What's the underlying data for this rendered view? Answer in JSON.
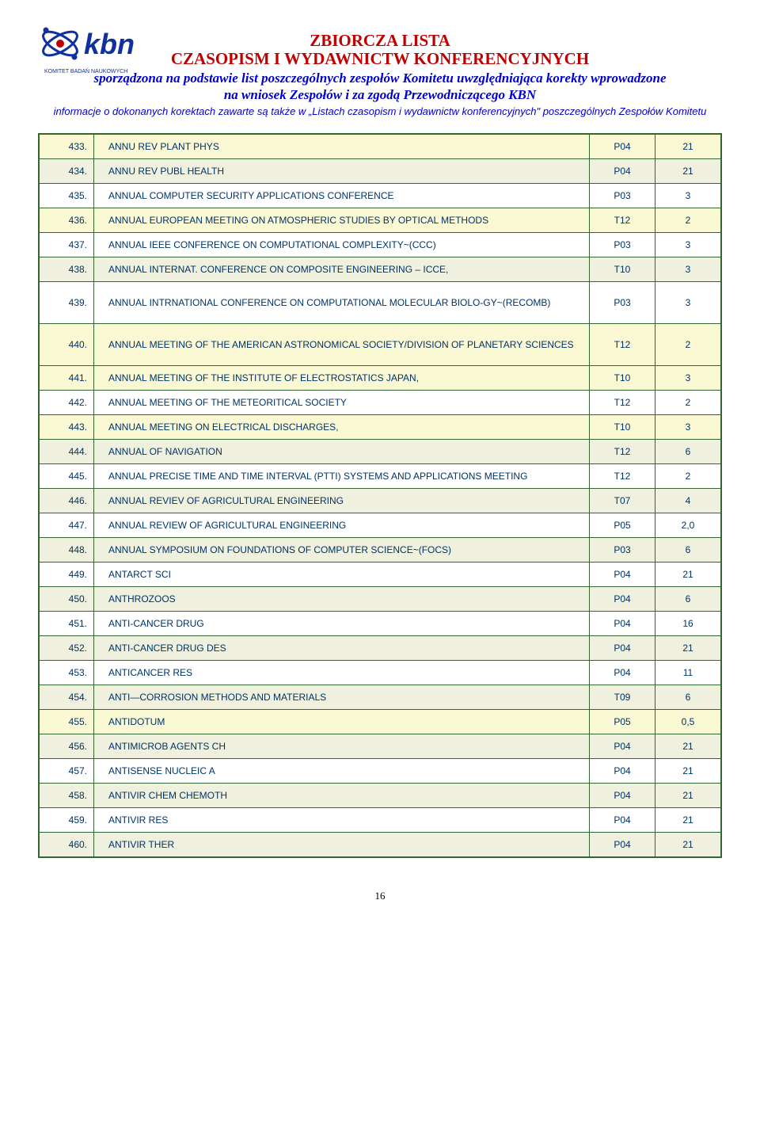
{
  "header": {
    "title_line1": "ZBIORCZA LISTA",
    "title_line2": "CZASOPISM I WYDAWNICTW KONFERENCYJNYCH",
    "subtitle_line1": "sporządzona na podstawie list poszczególnych zespołów Komitetu uwzględniająca korekty wprowadzone",
    "subtitle_line2": "na wniosek Zespołów i za zgodą Przewodniczącego KBN",
    "note": "informacje o dokonanych korektach zawarte są także w „Listach czasopism i wydawnictw konferencyjnych\" poszczególnych Zespołów Komitetu",
    "logo_text_top": "kbn",
    "logo_text_bottom": "KOMITET BADAŃ NAUKOWYCH"
  },
  "colors": {
    "border": "#336633",
    "text": "#003366",
    "title": "#c00000",
    "subtitle": "#0000cc",
    "bg_cream": "#fbf8d4",
    "bg_olive": "#eff0dd",
    "bg_white": "#ffffff"
  },
  "rows": [
    {
      "num": "433.",
      "name": "ANNU REV PLANT PHYS",
      "code": "P04",
      "val": "21",
      "bg": "cream"
    },
    {
      "num": "434.",
      "name": "ANNU REV PUBL HEALTH",
      "code": "P04",
      "val": "21",
      "bg": "olive"
    },
    {
      "num": "435.",
      "name": "ANNUAL COMPUTER SECURITY APPLICATIONS CONFERENCE",
      "code": "P03",
      "val": "3",
      "bg": "white"
    },
    {
      "num": "436.",
      "name": "ANNUAL EUROPEAN MEETING ON ATMOSPHERIC  STUDIES BY OPTICAL METHODS",
      "code": "T12",
      "val": "2",
      "bg": "cream"
    },
    {
      "num": "437.",
      "name": "ANNUAL IEEE CONFERENCE ON COMPUTATIONAL COMPLEXITY~(CCC)",
      "code": "P03",
      "val": "3",
      "bg": "white"
    },
    {
      "num": "438.",
      "name": " ANNUAL INTERNAT. CONFERENCE ON COMPOSITE ENGINEERING – ICCE,",
      "code": "T10",
      "val": "3",
      "bg": "olive"
    },
    {
      "num": "439.",
      "name": "ANNUAL INTRNATIONAL  CONFERENCE ON COMPUTATIONAL MOLECULAR BIOLO-GY~(RECOMB)",
      "code": "P03",
      "val": "3",
      "bg": "white",
      "tall": true
    },
    {
      "num": "440.",
      "name": "ANNUAL MEETING OF THE AMERICAN ASTRONOMICAL SOCIETY/DIVISION OF PLANETARY SCIENCES",
      "code": "T12",
      "val": "2",
      "bg": "cream",
      "tall": true
    },
    {
      "num": "441.",
      "name": "ANNUAL MEETING OF THE INSTITUTE OF ELECTROSTATICS JAPAN,",
      "code": "T10",
      "val": "3",
      "bg": "cream"
    },
    {
      "num": "442.",
      "name": "ANNUAL MEETING OF THE METEORITICAL SOCIETY",
      "code": "T12",
      "val": "2",
      "bg": "white"
    },
    {
      "num": "443.",
      "name": "ANNUAL MEETING ON ELECTRICAL DISCHARGES,",
      "code": "T10",
      "val": "3",
      "bg": "cream"
    },
    {
      "num": "444.",
      "name": "ANNUAL OF NAVIGATION",
      "code": "T12",
      "val": "6",
      "bg": "olive"
    },
    {
      "num": "445.",
      "name": "ANNUAL PRECISE TIME AND TIME INTERVAL (PTTI) SYSTEMS AND APPLICATIONS MEETING",
      "code": "T12",
      "val": "2",
      "bg": "white"
    },
    {
      "num": "446.",
      "name": "ANNUAL REVIEV OF AGRICULTURAL ENGINEERING",
      "code": "T07",
      "val": "4",
      "bg": "olive"
    },
    {
      "num": "447.",
      "name": "ANNUAL REVIEW OF AGRICULTURAL ENGINEERING",
      "code": "P05",
      "val": "2,0",
      "bg": "white"
    },
    {
      "num": "448.",
      "name": "ANNUAL SYMPOSIUM ON FOUNDATIONS OF COMPUTER SCIENCE~(FOCS)",
      "code": "P03",
      "val": "6",
      "bg": "olive"
    },
    {
      "num": "449.",
      "name": "ANTARCT SCI",
      "code": "P04",
      "val": "21",
      "bg": "white"
    },
    {
      "num": "450.",
      "name": "ANTHROZOOS",
      "code": "P04",
      "val": "6",
      "bg": "olive"
    },
    {
      "num": "451.",
      "name": "ANTI-CANCER DRUG",
      "code": "P04",
      "val": "16",
      "bg": "white"
    },
    {
      "num": "452.",
      "name": "ANTI-CANCER DRUG DES",
      "code": "P04",
      "val": "21",
      "bg": "olive"
    },
    {
      "num": "453.",
      "name": "ANTICANCER RES",
      "code": "P04",
      "val": "11",
      "bg": "white"
    },
    {
      "num": "454.",
      "name": " ANTI—CORROSION METHODS AND MATERIALS",
      "code": "T09",
      "val": "6",
      "bg": "olive"
    },
    {
      "num": "455.",
      "name": "ANTIDOTUM",
      "code": "P05",
      "val": "0,5",
      "bg": "cream"
    },
    {
      "num": "456.",
      "name": "ANTIMICROB AGENTS CH",
      "code": "P04",
      "val": "21",
      "bg": "olive"
    },
    {
      "num": "457.",
      "name": "ANTISENSE NUCLEIC A",
      "code": "P04",
      "val": "21",
      "bg": "white"
    },
    {
      "num": "458.",
      "name": "ANTIVIR CHEM CHEMOTH",
      "code": "P04",
      "val": "21",
      "bg": "olive"
    },
    {
      "num": "459.",
      "name": "ANTIVIR RES",
      "code": "P04",
      "val": "21",
      "bg": "white"
    },
    {
      "num": "460.",
      "name": "ANTIVIR THER",
      "code": "P04",
      "val": "21",
      "bg": "olive"
    }
  ],
  "footer": {
    "page": "16"
  }
}
